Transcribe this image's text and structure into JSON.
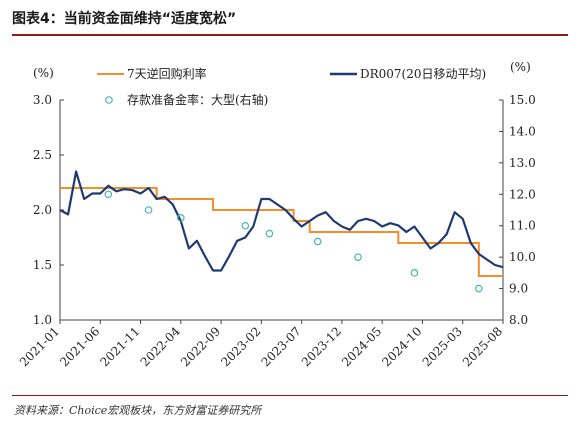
{
  "figure": {
    "title": "图表4：当前资金面维持“适度宽松”",
    "source": "资料来源：Choice宏观板块，东方财富证券研究所"
  },
  "chart_data": {
    "type": "line",
    "left_unit": "(%)",
    "right_unit": "(%)",
    "y_left": {
      "lim": [
        1.0,
        3.0
      ],
      "ticks": [
        "1.0",
        "1.5",
        "2.0",
        "2.5",
        "3.0"
      ]
    },
    "y_right": {
      "lim": [
        8.0,
        15.0
      ],
      "ticks": [
        "8.0",
        "9.0",
        "10.0",
        "11.0",
        "12.0",
        "13.0",
        "14.0",
        "15.0"
      ]
    },
    "x_ticks": [
      "2021-01",
      "2021-06",
      "2021-11",
      "2022-04",
      "2022-09",
      "2023-02",
      "2023-07",
      "2023-12",
      "2024-05",
      "2024-10",
      "2025-03",
      "2025-08"
    ],
    "legend": [
      "7天逆回购利率",
      "DR007(20日移动平均)",
      "存款准备金率：大型(右轴)"
    ],
    "colors": {
      "repo": "#f28e2b",
      "dr007": "#1f3a73",
      "rrr": "#45b5b0"
    },
    "series": [
      {
        "name": "7天逆回购利率",
        "axis": "left",
        "style": "step",
        "points": [
          [
            "2021-01",
            2.2
          ],
          [
            "2022-01",
            2.1
          ],
          [
            "2022-08",
            2.0
          ],
          [
            "2023-06",
            1.9
          ],
          [
            "2023-08",
            1.8
          ],
          [
            "2024-07",
            1.7
          ],
          [
            "2025-05",
            1.4
          ],
          [
            "2025-08",
            1.4
          ]
        ]
      },
      {
        "name": "DR007(20日移动平均)",
        "axis": "left",
        "style": "line",
        "points": [
          [
            "2021-01",
            2.0
          ],
          [
            "2021-02",
            1.96
          ],
          [
            "2021-03",
            2.35
          ],
          [
            "2021-04",
            2.1
          ],
          [
            "2021-05",
            2.15
          ],
          [
            "2021-06",
            2.15
          ],
          [
            "2021-07",
            2.22
          ],
          [
            "2021-08",
            2.17
          ],
          [
            "2021-09",
            2.19
          ],
          [
            "2021-10",
            2.18
          ],
          [
            "2021-11",
            2.15
          ],
          [
            "2021-12",
            2.2
          ],
          [
            "2022-01",
            2.1
          ],
          [
            "2022-02",
            2.12
          ],
          [
            "2022-03",
            2.05
          ],
          [
            "2022-04",
            1.9
          ],
          [
            "2022-05",
            1.65
          ],
          [
            "2022-06",
            1.72
          ],
          [
            "2022-07",
            1.58
          ],
          [
            "2022-08",
            1.45
          ],
          [
            "2022-09",
            1.45
          ],
          [
            "2022-10",
            1.58
          ],
          [
            "2022-11",
            1.72
          ],
          [
            "2022-12",
            1.75
          ],
          [
            "2023-01",
            1.85
          ],
          [
            "2023-02",
            2.1
          ],
          [
            "2023-03",
            2.1
          ],
          [
            "2023-04",
            2.05
          ],
          [
            "2023-05",
            2.0
          ],
          [
            "2023-06",
            1.92
          ],
          [
            "2023-07",
            1.85
          ],
          [
            "2023-08",
            1.9
          ],
          [
            "2023-09",
            1.95
          ],
          [
            "2023-10",
            1.98
          ],
          [
            "2023-11",
            1.9
          ],
          [
            "2023-12",
            1.85
          ],
          [
            "2024-01",
            1.82
          ],
          [
            "2024-02",
            1.9
          ],
          [
            "2024-03",
            1.92
          ],
          [
            "2024-04",
            1.9
          ],
          [
            "2024-05",
            1.85
          ],
          [
            "2024-06",
            1.88
          ],
          [
            "2024-07",
            1.86
          ],
          [
            "2024-08",
            1.8
          ],
          [
            "2024-09",
            1.85
          ],
          [
            "2024-10",
            1.75
          ],
          [
            "2024-11",
            1.65
          ],
          [
            "2024-12",
            1.7
          ],
          [
            "2025-01",
            1.78
          ],
          [
            "2025-02",
            1.98
          ],
          [
            "2025-03",
            1.92
          ],
          [
            "2025-04",
            1.7
          ],
          [
            "2025-05",
            1.6
          ],
          [
            "2025-06",
            1.55
          ],
          [
            "2025-07",
            1.5
          ],
          [
            "2025-08",
            1.48
          ]
        ]
      },
      {
        "name": "存款准备金率：大型(右轴)",
        "axis": "right",
        "style": "markers",
        "points": [
          [
            "2021-07",
            12.0
          ],
          [
            "2021-12",
            11.5
          ],
          [
            "2022-04",
            11.25
          ],
          [
            "2022-12",
            11.0
          ],
          [
            "2023-03",
            10.75
          ],
          [
            "2023-09",
            10.5
          ],
          [
            "2024-02",
            10.0
          ],
          [
            "2024-09",
            9.5
          ],
          [
            "2025-05",
            9.0
          ]
        ]
      }
    ]
  }
}
